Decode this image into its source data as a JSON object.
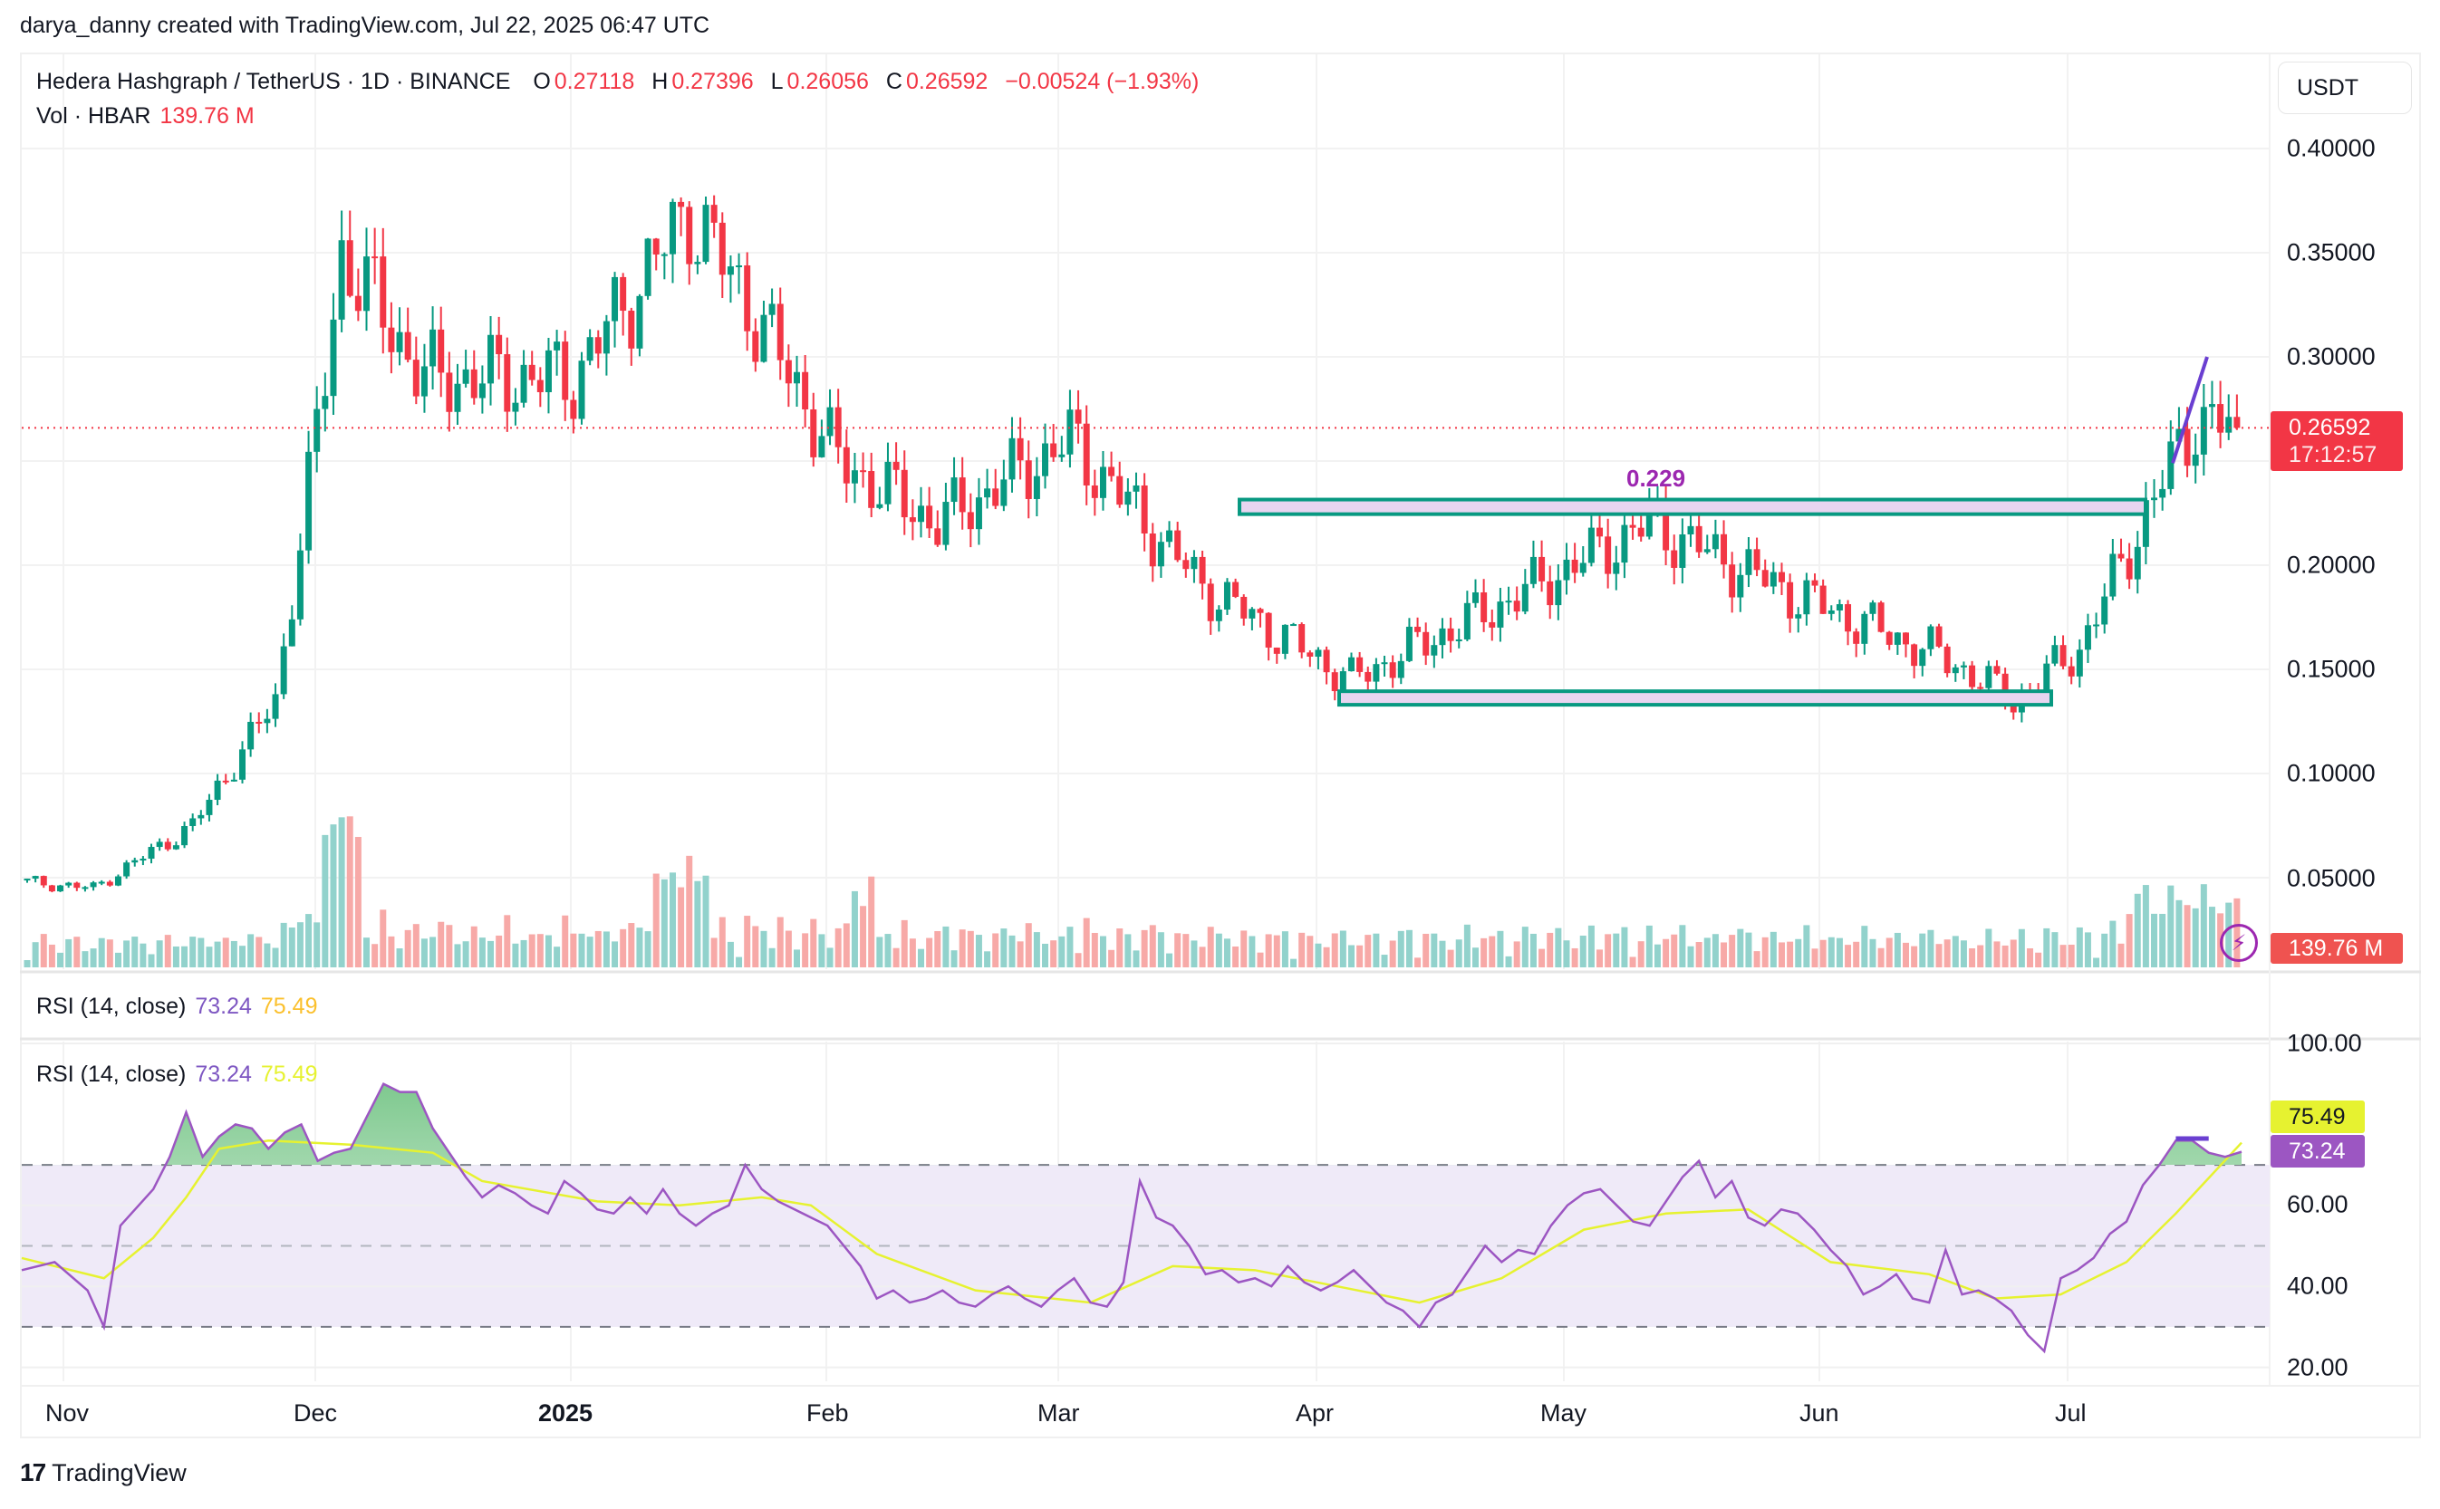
{
  "attribution": "darya_danny created with TradingView.com, Jul 22, 2025 06:47 UTC",
  "header": {
    "symbol": "Hedera Hashgraph / TetherUS · 1D · BINANCE",
    "o_label": "O",
    "o_value": "0.27118",
    "h_label": "H",
    "h_value": "0.27396",
    "l_label": "L",
    "l_value": "0.26056",
    "c_label": "C",
    "c_value": "0.26592",
    "change": "−0.00524 (−1.93%)",
    "vol_label": "Vol · HBAR",
    "vol_value": "139.76 M"
  },
  "currency_button": "USDT",
  "price_axis": [
    "0.40000",
    "0.35000",
    "0.30000",
    "0.20000",
    "0.15000",
    "0.10000",
    "0.05000"
  ],
  "last_price_tag": {
    "price": "0.26592",
    "countdown": "17:12:57"
  },
  "volume_tag": "139.76 M",
  "annotation": {
    "label": "0.229"
  },
  "rsi_header": {
    "name": "RSI (14, close)",
    "rsi": "73.24",
    "ma": "75.49"
  },
  "rsi_axis": [
    "100.00",
    "75.49",
    "60.00",
    "40.00",
    "20.00"
  ],
  "rsi_tags": {
    "ma": "75.49",
    "rsi": "73.24"
  },
  "time_axis": [
    "Nov",
    "Dec",
    "2025",
    "Feb",
    "Mar",
    "Apr",
    "May",
    "Jun",
    "Jul"
  ],
  "footer": {
    "logo": "17",
    "brand": "TradingView"
  },
  "colors": {
    "up": "#089981",
    "down": "#f23645",
    "rsi": "#7e57c2",
    "rsi_ma": "#e6f230",
    "box_fill": "#e8d5f0",
    "box_stroke": "#089981",
    "annotation": "#9c27b0"
  },
  "chart_data": [
    {
      "type": "candlestick",
      "title": "Hedera Hashgraph / TetherUS · 1D · BINANCE",
      "ylabel": "USDT",
      "ylim": [
        0.02,
        0.41
      ],
      "x_ticks": [
        "Nov",
        "Dec",
        "2025",
        "Feb",
        "Mar",
        "Apr",
        "May",
        "Jun",
        "Jul"
      ],
      "y_ticks": [
        0.05,
        0.1,
        0.15,
        0.2,
        0.3,
        0.35,
        0.4
      ],
      "last": {
        "open": 0.27118,
        "high": 0.27396,
        "low": 0.26056,
        "close": 0.26592,
        "change": -0.00524,
        "change_pct": -1.93
      },
      "approx_closes_by_period": [
        {
          "period": "late Oct 2024",
          "close": 0.048
        },
        {
          "period": "early Nov 2024",
          "close": 0.045
        },
        {
          "period": "mid Nov 2024",
          "close": 0.075
        },
        {
          "period": "late Nov 2024",
          "close": 0.135
        },
        {
          "period": "Dec 3 2024",
          "close": 0.29
        },
        {
          "period": "Dec 5 2024",
          "close": 0.35
        },
        {
          "period": "mid Dec 2024",
          "close": 0.29
        },
        {
          "period": "early Jan 2025",
          "close": 0.29
        },
        {
          "period": "Jan 17 2025",
          "close": 0.37
        },
        {
          "period": "late Jan 2025",
          "close": 0.32
        },
        {
          "period": "early Feb 2025",
          "close": 0.25
        },
        {
          "period": "mid Feb 2025",
          "close": 0.22
        },
        {
          "period": "Mar 2 2025",
          "close": 0.26
        },
        {
          "period": "mid Mar 2025",
          "close": 0.19
        },
        {
          "period": "early Apr 2025",
          "close": 0.145
        },
        {
          "period": "late Apr 2025",
          "close": 0.185
        },
        {
          "period": "May 10 2025",
          "close": 0.22
        },
        {
          "period": "late May 2025",
          "close": 0.185
        },
        {
          "period": "mid Jun 2025",
          "close": 0.155
        },
        {
          "period": "Jun 22 2025",
          "close": 0.135
        },
        {
          "period": "early Jul 2025",
          "close": 0.16
        },
        {
          "period": "Jul 11 2025",
          "close": 0.24
        },
        {
          "period": "Jul 17 2025",
          "close": 0.27
        },
        {
          "period": "Jul 22 2025",
          "close": 0.26592
        }
      ],
      "annotations": [
        {
          "type": "rectangle",
          "label": "resistance",
          "y_range": [
            0.2245,
            0.2315
          ],
          "x_range": [
            "Mar 20 2025",
            "Jul 8 2025"
          ]
        },
        {
          "type": "rectangle",
          "label": "support",
          "y_range": [
            0.133,
            0.1395
          ],
          "x_range": [
            "Apr 2 2025",
            "Jun 27 2025"
          ]
        },
        {
          "type": "text",
          "label": "0.229",
          "x": "May 10 2025"
        },
        {
          "type": "trendline",
          "from": {
            "x": "Jul 12 2025",
            "y": 0.249
          },
          "to": {
            "x": "Jul 16 2025",
            "y": 0.3
          }
        },
        {
          "type": "hline",
          "label": "last price",
          "y": 0.26592,
          "style": "dotted",
          "color": "#f23645"
        }
      ]
    },
    {
      "type": "bar",
      "title": "Vol · HBAR",
      "last_value": "139.76 M",
      "notes": "Volume spikes early Dec 2024 and mid-Jan 2025; moderate Jul 2025"
    },
    {
      "type": "line",
      "title": "RSI (14, close)",
      "ylim": [
        15,
        100
      ],
      "y_ticks": [
        20,
        40,
        60,
        100
      ],
      "bands": {
        "upper": 70,
        "middle": 50,
        "lower": 30
      },
      "series": [
        {
          "name": "RSI",
          "last": 73.24,
          "color": "#7e57c2",
          "points": [
            [
              0,
              44
            ],
            [
              4,
              46
            ],
            [
              8,
              39
            ],
            [
              10,
              30
            ],
            [
              12,
              55
            ],
            [
              16,
              64
            ],
            [
              18,
              72
            ],
            [
              20,
              83
            ],
            [
              22,
              72
            ],
            [
              24,
              77
            ],
            [
              26,
              80
            ],
            [
              28,
              79
            ],
            [
              30,
              74
            ],
            [
              32,
              78
            ],
            [
              34,
              80
            ],
            [
              36,
              71
            ],
            [
              38,
              73
            ],
            [
              40,
              74
            ],
            [
              42,
              82
            ],
            [
              44,
              90
            ],
            [
              46,
              88
            ],
            [
              48,
              88
            ],
            [
              50,
              79
            ],
            [
              52,
              73
            ],
            [
              54,
              67
            ],
            [
              56,
              62
            ],
            [
              58,
              65
            ],
            [
              60,
              63
            ],
            [
              62,
              60
            ],
            [
              64,
              58
            ],
            [
              66,
              66
            ],
            [
              68,
              63
            ],
            [
              70,
              59
            ],
            [
              72,
              58
            ],
            [
              74,
              62
            ],
            [
              76,
              58
            ],
            [
              78,
              64
            ],
            [
              80,
              58
            ],
            [
              82,
              55
            ],
            [
              84,
              58
            ],
            [
              86,
              60
            ],
            [
              88,
              70
            ],
            [
              90,
              64
            ],
            [
              92,
              61
            ],
            [
              94,
              59
            ],
            [
              96,
              57
            ],
            [
              98,
              55
            ],
            [
              100,
              50
            ],
            [
              102,
              45
            ],
            [
              104,
              37
            ],
            [
              106,
              39
            ],
            [
              108,
              36
            ],
            [
              110,
              37
            ],
            [
              112,
              39
            ],
            [
              114,
              36
            ],
            [
              116,
              35
            ],
            [
              118,
              38
            ],
            [
              120,
              40
            ],
            [
              122,
              37
            ],
            [
              124,
              35
            ],
            [
              126,
              39
            ],
            [
              128,
              42
            ],
            [
              130,
              36
            ],
            [
              132,
              35
            ],
            [
              134,
              41
            ],
            [
              136,
              66
            ],
            [
              138,
              57
            ],
            [
              140,
              55
            ],
            [
              142,
              50
            ],
            [
              144,
              43
            ],
            [
              146,
              44
            ],
            [
              148,
              41
            ],
            [
              150,
              42
            ],
            [
              152,
              40
            ],
            [
              154,
              45
            ],
            [
              156,
              41
            ],
            [
              158,
              39
            ],
            [
              160,
              41
            ],
            [
              162,
              44
            ],
            [
              164,
              40
            ],
            [
              166,
              36
            ],
            [
              168,
              34
            ],
            [
              170,
              30
            ],
            [
              172,
              36
            ],
            [
              174,
              38
            ],
            [
              176,
              44
            ],
            [
              178,
              50
            ],
            [
              180,
              46
            ],
            [
              182,
              49
            ],
            [
              184,
              48
            ],
            [
              186,
              55
            ],
            [
              188,
              60
            ],
            [
              190,
              63
            ],
            [
              192,
              64
            ],
            [
              194,
              60
            ],
            [
              196,
              56
            ],
            [
              198,
              55
            ],
            [
              200,
              61
            ],
            [
              202,
              67
            ],
            [
              204,
              71
            ],
            [
              206,
              62
            ],
            [
              208,
              66
            ],
            [
              210,
              57
            ],
            [
              212,
              55
            ],
            [
              214,
              59
            ],
            [
              216,
              58
            ],
            [
              218,
              54
            ],
            [
              220,
              49
            ],
            [
              222,
              45
            ],
            [
              224,
              38
            ],
            [
              226,
              40
            ],
            [
              228,
              43
            ],
            [
              230,
              37
            ],
            [
              232,
              36
            ],
            [
              234,
              49
            ],
            [
              236,
              38
            ],
            [
              238,
              39
            ],
            [
              240,
              37
            ],
            [
              242,
              34
            ],
            [
              244,
              28
            ],
            [
              246,
              24
            ],
            [
              248,
              42
            ],
            [
              250,
              44
            ],
            [
              252,
              47
            ],
            [
              254,
              53
            ],
            [
              256,
              56
            ],
            [
              258,
              65
            ],
            [
              260,
              70
            ],
            [
              262,
              76
            ],
            [
              264,
              76
            ],
            [
              266,
              73
            ],
            [
              268,
              72
            ],
            [
              270,
              73.24
            ]
          ]
        },
        {
          "name": "RSI-based MA",
          "last": 75.49,
          "color": "#e6f230",
          "points": [
            [
              0,
              47
            ],
            [
              10,
              42
            ],
            [
              16,
              52
            ],
            [
              20,
              62
            ],
            [
              24,
              74
            ],
            [
              30,
              76
            ],
            [
              40,
              75
            ],
            [
              50,
              73
            ],
            [
              56,
              66
            ],
            [
              70,
              61
            ],
            [
              80,
              60
            ],
            [
              90,
              62
            ],
            [
              96,
              60
            ],
            [
              104,
              48
            ],
            [
              116,
              39
            ],
            [
              130,
              36
            ],
            [
              140,
              45
            ],
            [
              150,
              44
            ],
            [
              160,
              40
            ],
            [
              170,
              36
            ],
            [
              180,
              42
            ],
            [
              190,
              54
            ],
            [
              200,
              58
            ],
            [
              210,
              59
            ],
            [
              220,
              46
            ],
            [
              232,
              43
            ],
            [
              240,
              37
            ],
            [
              248,
              38
            ],
            [
              256,
              46
            ],
            [
              262,
              58
            ],
            [
              270,
              75.49
            ]
          ]
        }
      ]
    }
  ]
}
